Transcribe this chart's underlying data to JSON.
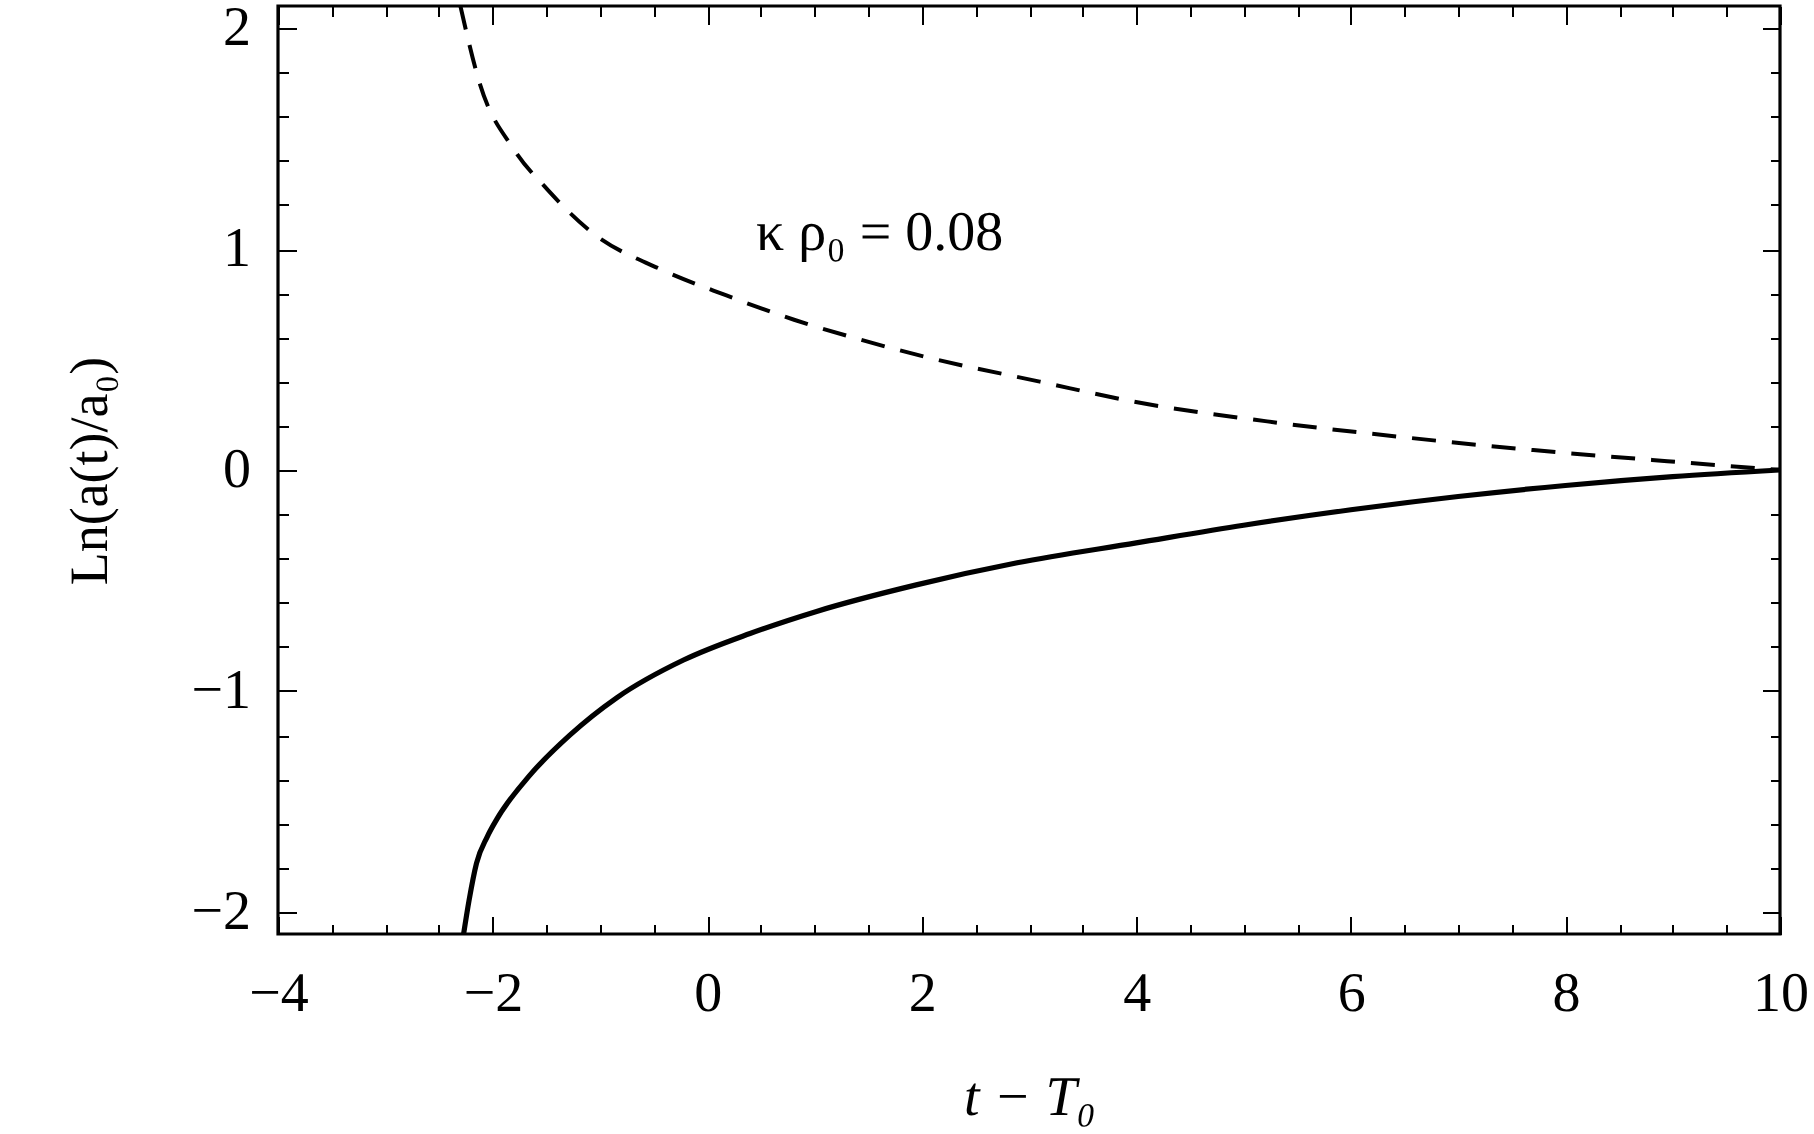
{
  "chart_data": {
    "type": "line",
    "xlabel": "t − T₀",
    "ylabel": "Ln(a(t)/a₀)",
    "series": [
      {
        "color": "#000000",
        "line_style": "solid",
        "x": [
          -2.27,
          -2.22,
          -2.15,
          -2.05,
          -1.96,
          -1.65,
          -1.28,
          -0.84,
          -0.22,
          0.4,
          1.02,
          1.95,
          2.89,
          4.0,
          5.0,
          6.0,
          7.0,
          8.0,
          9.0,
          10
        ],
        "values": [
          -2.1,
          -1.95,
          -1.78,
          -1.66,
          -1.58,
          -1.38,
          -1.2,
          -1.03,
          -0.86,
          -0.74,
          -0.64,
          -0.52,
          -0.42,
          -0.33,
          -0.25,
          -0.18,
          -0.12,
          -0.07,
          -0.03,
          0
        ]
      },
      {
        "color": "#000000",
        "line_style": "dashed",
        "x": [
          -2.3,
          -2.12,
          -1.8,
          -1.49,
          -1.06,
          -0.44,
          0.18,
          0.81,
          1.43,
          2.05,
          3.1,
          3.97,
          5.22,
          6.46,
          7.7,
          8.95,
          10
        ],
        "values": [
          2.1,
          1.75,
          1.45,
          1.27,
          1.07,
          0.91,
          0.79,
          0.68,
          0.59,
          0.51,
          0.4,
          0.31,
          0.22,
          0.15,
          0.09,
          0.04,
          0
        ]
      }
    ],
    "xlim": [
      -4,
      10
    ],
    "xticks": [
      -4,
      {
        "value": -3.5,
        "label": null
      },
      {
        "value": -3,
        "label": null
      },
      {
        "value": -2.5,
        "label": null
      },
      -2,
      {
        "value": -1.5,
        "label": null
      },
      {
        "value": -1,
        "label": null
      },
      {
        "value": -0.5,
        "label": null
      },
      0,
      {
        "value": 0.5,
        "label": null
      },
      {
        "value": 1,
        "label": null
      },
      {
        "value": 1.5,
        "label": null
      },
      2,
      {
        "value": 2.5,
        "label": null
      },
      {
        "value": 3,
        "label": null
      },
      {
        "value": 3.5,
        "label": null
      },
      4,
      {
        "value": 4.5,
        "label": null
      },
      {
        "value": 5,
        "label": null
      },
      {
        "value": 5.5,
        "label": null
      },
      6,
      {
        "value": 6.5,
        "label": null
      },
      {
        "value": 7,
        "label": null
      },
      {
        "value": 7.5,
        "label": null
      },
      8,
      {
        "value": 8.5,
        "label": null
      },
      {
        "value": 9,
        "label": null
      },
      {
        "value": 9.5,
        "label": null
      },
      10
    ],
    "ylim": [
      -2.1,
      2.1
    ],
    "yticks": [
      -2,
      {
        "value": -1.8,
        "label": null
      },
      {
        "value": -1.6,
        "label": null
      },
      {
        "value": -1.4,
        "label": null
      },
      {
        "value": -1.2,
        "label": null
      },
      -1,
      {
        "value": -0.8,
        "label": null
      },
      {
        "value": -0.6,
        "label": null
      },
      {
        "value": -0.4,
        "label": null
      },
      {
        "value": -0.2,
        "label": null
      },
      0,
      {
        "value": 0.2,
        "label": null
      },
      {
        "value": 0.4,
        "label": null
      },
      {
        "value": 0.6,
        "label": null
      },
      {
        "value": 0.8,
        "label": null
      },
      1,
      {
        "value": 1.2,
        "label": null
      },
      {
        "value": 1.4,
        "label": null
      },
      {
        "value": 1.6,
        "label": null
      },
      {
        "value": 1.8,
        "label": null
      },
      2
    ],
    "annotations": [
      "κ ρ₀ = 0.08"
    ]
  }
}
